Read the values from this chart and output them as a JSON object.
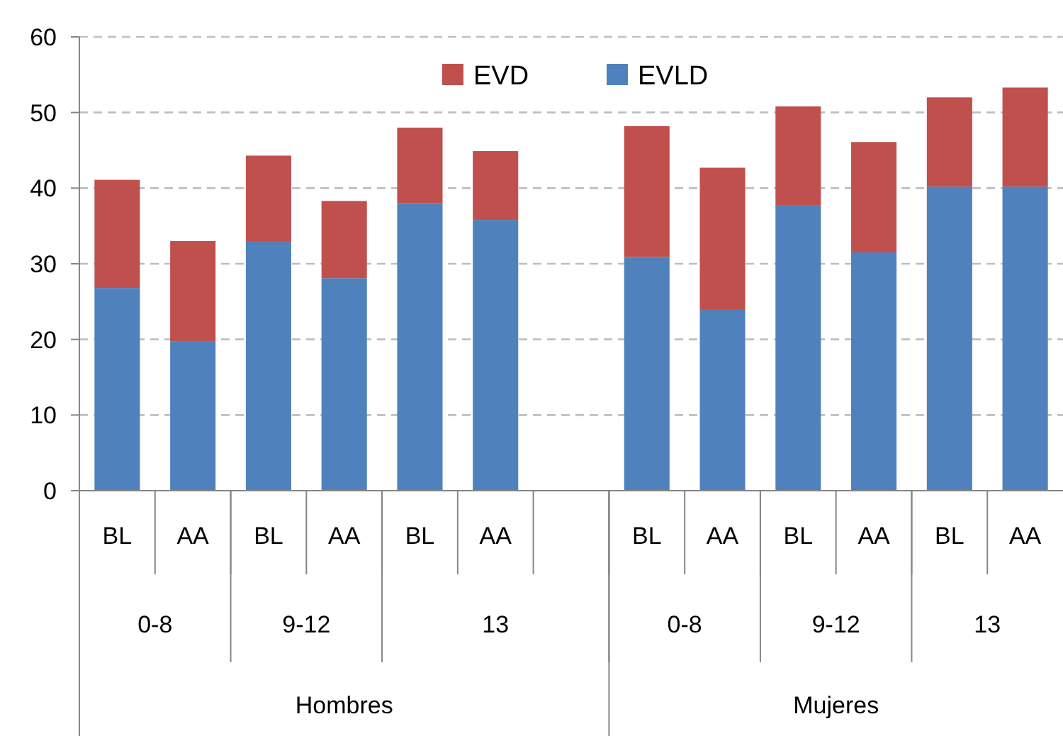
{
  "chart_data": {
    "type": "bar",
    "stacked": true,
    "categories": [
      "BL",
      "AA",
      "BL",
      "AA",
      "BL",
      "AA",
      null,
      "BL",
      "AA",
      "BL",
      "AA",
      "BL",
      "AA"
    ],
    "series": [
      {
        "name": "EVLD",
        "color": "#4f81bd",
        "values": [
          26.8,
          19.7,
          33.0,
          28.1,
          38.0,
          35.8,
          null,
          30.9,
          24.0,
          37.7,
          31.5,
          40.2,
          40.2
        ]
      },
      {
        "name": "EVD",
        "color": "#c0504d",
        "values": [
          14.3,
          13.3,
          11.3,
          10.2,
          10.0,
          9.1,
          null,
          17.3,
          18.7,
          13.1,
          14.6,
          11.8,
          13.1
        ]
      }
    ],
    "annotations": [
      "0-8",
      "9-12",
      "13",
      "0-8",
      "9-12",
      "13",
      "Hombres",
      "Mujeres"
    ],
    "ylim": [
      0,
      60
    ],
    "yticks": [
      0,
      10,
      20,
      30,
      40,
      50,
      60
    ],
    "grid": "y",
    "legend": "top"
  }
}
